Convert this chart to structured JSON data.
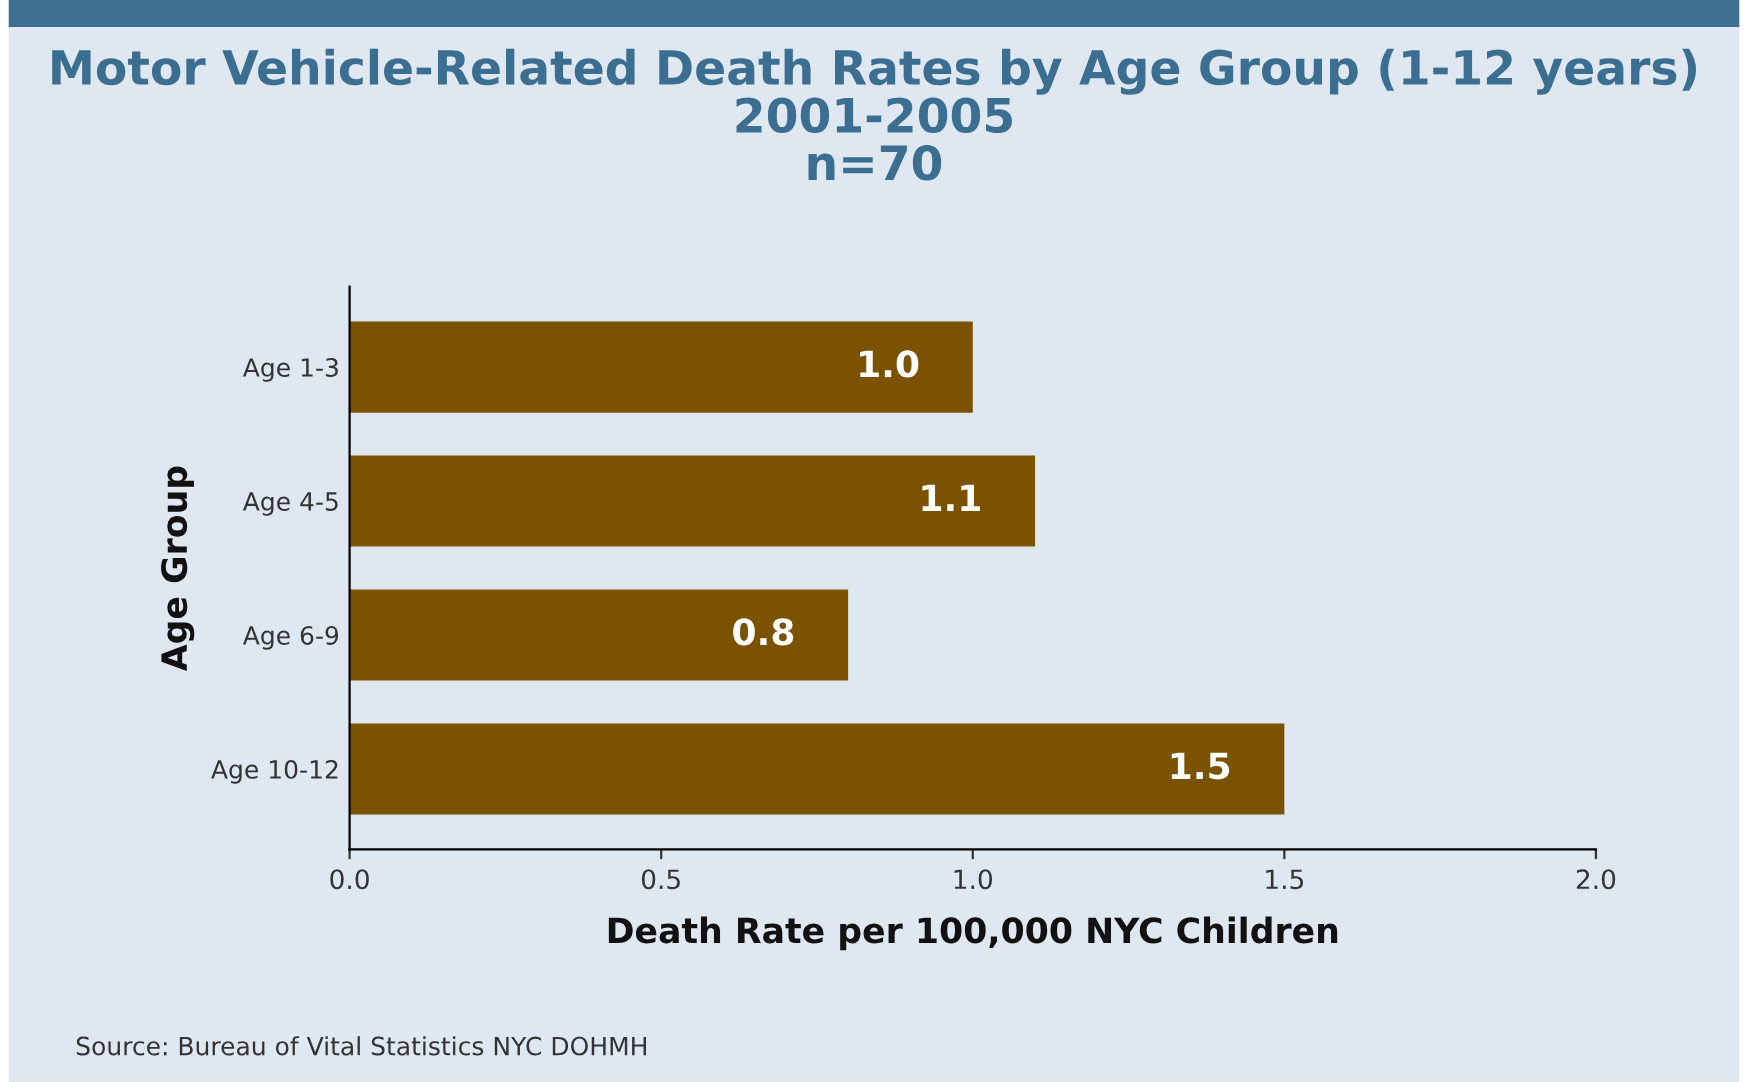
{
  "chart_data": {
    "type": "bar",
    "orientation": "horizontal",
    "title": "Motor Vehicle-Related Death Rates by Age Group (1-12 years)\n2001-2005\nn=70",
    "categories": [
      "Age 1-3",
      "Age 4-5",
      "Age 6-9",
      "Age 10-12"
    ],
    "values": [
      1.0,
      1.1,
      0.8,
      1.5
    ],
    "value_labels": [
      "1.0",
      "1.1",
      "0.8",
      "1.5"
    ],
    "color": "#7a5200",
    "xlim": [
      0.0,
      2.0
    ],
    "xticks": [
      {
        "value": 0,
        "label": "0.0"
      },
      {
        "value": 0.5,
        "label": "0.5"
      },
      {
        "value": 1,
        "label": "1.0"
      },
      {
        "value": 1.5,
        "label": "1.5"
      },
      {
        "value": 2,
        "label": "2.0"
      }
    ],
    "xlabel": "Death Rate per 100,000 NYC Children",
    "ylabel": "Age Group",
    "grid": false,
    "legend": false,
    "annotations": [
      "Source: Bureau of Vital Statistics NYC DOHMH"
    ]
  }
}
